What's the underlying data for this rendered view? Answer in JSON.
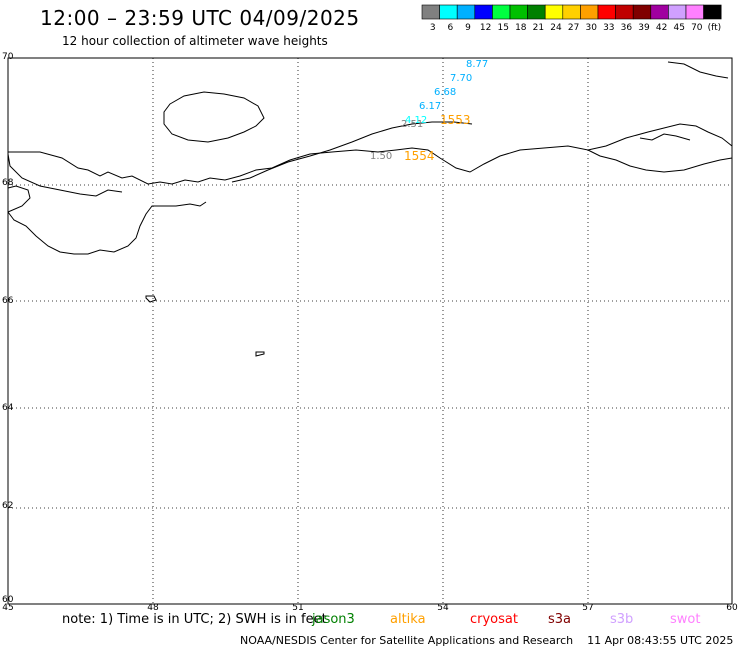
{
  "header": {
    "title": "12:00 – 23:59 UTC 04/09/2025",
    "subtitle": "12 hour collection of altimeter wave heights"
  },
  "legend": {
    "colors": [
      "#808080",
      "#00ffff",
      "#00b0ff",
      "#0000ff",
      "#00ff40",
      "#00c000",
      "#008000",
      "#ffff00",
      "#ffd000",
      "#ffa000",
      "#ff0000",
      "#c00000",
      "#800000",
      "#a000a0",
      "#d0a0ff",
      "#ff80ff",
      "#000000"
    ],
    "labels": [
      "3",
      "6",
      "9",
      "12",
      "15",
      "18",
      "21",
      "24",
      "27",
      "30",
      "33",
      "36",
      "39",
      "42",
      "45",
      "70",
      "(ft)"
    ]
  },
  "axes": {
    "lat_labels": [
      "70",
      "68",
      "66",
      "64",
      "62",
      "60"
    ],
    "lon_labels": [
      "45",
      "48",
      "51",
      "54",
      "57",
      "60"
    ]
  },
  "observations": {
    "wave_heights": [
      {
        "text": "8.77",
        "color": "#00b0ff"
      },
      {
        "text": "7.70",
        "color": "#00b0ff"
      },
      {
        "text": "6.68",
        "color": "#00b0ff"
      },
      {
        "text": "6.17",
        "color": "#00b0ff"
      },
      {
        "text": "4.12",
        "color": "#00ffff"
      },
      {
        "text": "2.51",
        "color": "#808080"
      },
      {
        "text": "1.50",
        "color": "#808080"
      }
    ],
    "times": [
      {
        "text": "1553",
        "color": "#ffa000"
      },
      {
        "text": "1554",
        "color": "#ffa000"
      }
    ]
  },
  "footer": {
    "note": "note: 1) Time is in UTC; 2) SWH is in feet",
    "satellites": [
      {
        "name": "jason3",
        "color": "#008000"
      },
      {
        "name": "altika",
        "color": "#ffa000"
      },
      {
        "name": "cryosat",
        "color": "#ff0000"
      },
      {
        "name": "s3a",
        "color": "#800000"
      },
      {
        "name": "s3b",
        "color": "#d0a0ff"
      },
      {
        "name": "swot",
        "color": "#ff80ff"
      }
    ],
    "credit": "NOAA/NESDIS Center for Satellite Applications and Research",
    "timestamp": "11 Apr 08:43:55 UTC 2025"
  }
}
